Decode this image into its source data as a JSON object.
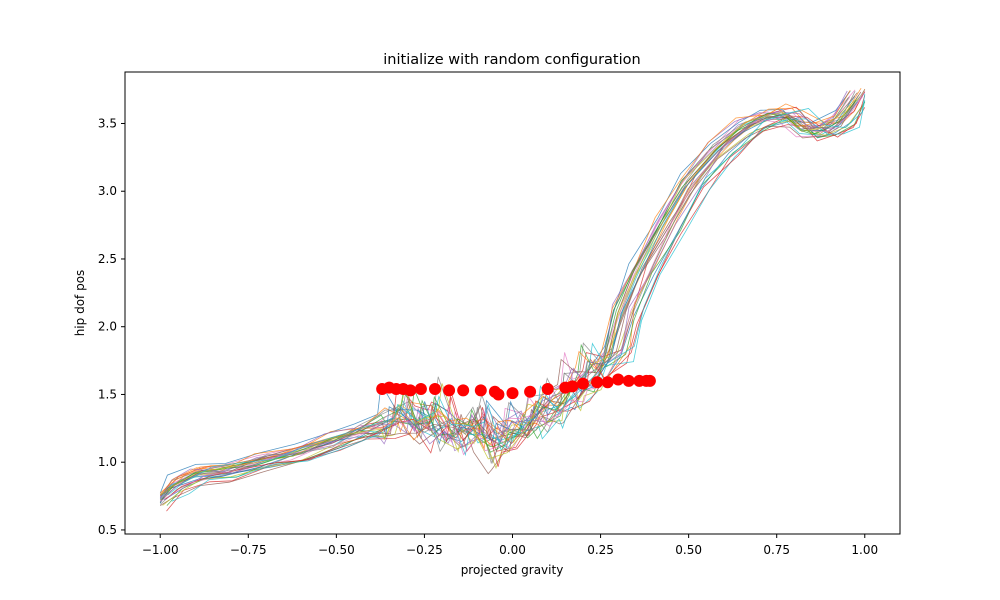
{
  "chart_data": {
    "type": "line",
    "title": "initialize with random configuration",
    "xlabel": "projected gravity",
    "ylabel": "hip dof pos",
    "xlim": [
      -1.1,
      1.1
    ],
    "ylim": [
      0.47,
      3.88
    ],
    "x_ticks": [
      -1.0,
      -0.75,
      -0.5,
      -0.25,
      0.0,
      0.25,
      0.5,
      0.75,
      1.0
    ],
    "x_tick_labels": [
      "−1.00",
      "−0.75",
      "−0.50",
      "−0.25",
      "0.00",
      "0.25",
      "0.50",
      "0.75",
      "1.00"
    ],
    "y_ticks": [
      0.5,
      1.0,
      1.5,
      2.0,
      2.5,
      3.0,
      3.5
    ],
    "y_tick_labels": [
      "0.5",
      "1.0",
      "1.5",
      "2.0",
      "2.5",
      "3.0",
      "3.5"
    ],
    "grid": false,
    "legend": "none",
    "series_count": 30,
    "series_colors": [
      "#1f77b4",
      "#ff7f0e",
      "#2ca02c",
      "#d62728",
      "#9467bd",
      "#8c564b",
      "#e377c2",
      "#7f7f7f",
      "#bcbd22",
      "#17becf"
    ],
    "base_path": [
      [
        -1.0,
        0.72
      ],
      [
        -0.95,
        0.82
      ],
      [
        -0.88,
        0.9
      ],
      [
        -0.8,
        0.93
      ],
      [
        -0.7,
        1.0
      ],
      [
        -0.6,
        1.06
      ],
      [
        -0.5,
        1.15
      ],
      [
        -0.42,
        1.22
      ],
      [
        -0.35,
        1.28
      ],
      [
        -0.3,
        1.32
      ],
      [
        -0.25,
        1.22
      ],
      [
        -0.2,
        1.28
      ],
      [
        -0.15,
        1.18
      ],
      [
        -0.1,
        1.25
      ],
      [
        -0.05,
        1.1
      ],
      [
        0.0,
        1.18
      ],
      [
        0.05,
        1.25
      ],
      [
        0.1,
        1.35
      ],
      [
        0.15,
        1.45
      ],
      [
        0.2,
        1.55
      ],
      [
        0.25,
        1.62
      ],
      [
        0.3,
        1.8
      ],
      [
        0.33,
        2.1
      ],
      [
        0.38,
        2.4
      ],
      [
        0.45,
        2.75
      ],
      [
        0.52,
        3.05
      ],
      [
        0.6,
        3.3
      ],
      [
        0.68,
        3.48
      ],
      [
        0.75,
        3.55
      ],
      [
        0.8,
        3.55
      ],
      [
        0.85,
        3.45
      ],
      [
        0.9,
        3.45
      ],
      [
        0.95,
        3.52
      ],
      [
        1.0,
        3.7
      ]
    ],
    "marker_color": "#ff0000",
    "markers": [
      [
        -0.37,
        1.54
      ],
      [
        -0.35,
        1.55
      ],
      [
        -0.33,
        1.54
      ],
      [
        -0.31,
        1.54
      ],
      [
        -0.29,
        1.53
      ],
      [
        -0.26,
        1.54
      ],
      [
        -0.22,
        1.54
      ],
      [
        -0.18,
        1.53
      ],
      [
        -0.14,
        1.53
      ],
      [
        -0.09,
        1.53
      ],
      [
        -0.05,
        1.52
      ],
      [
        -0.04,
        1.5
      ],
      [
        0.0,
        1.51
      ],
      [
        0.05,
        1.52
      ],
      [
        0.1,
        1.54
      ],
      [
        0.15,
        1.55
      ],
      [
        0.17,
        1.56
      ],
      [
        0.2,
        1.58
      ],
      [
        0.24,
        1.59
      ],
      [
        0.27,
        1.59
      ],
      [
        0.3,
        1.61
      ],
      [
        0.33,
        1.6
      ],
      [
        0.36,
        1.6
      ],
      [
        0.38,
        1.6
      ],
      [
        0.39,
        1.6
      ]
    ]
  }
}
